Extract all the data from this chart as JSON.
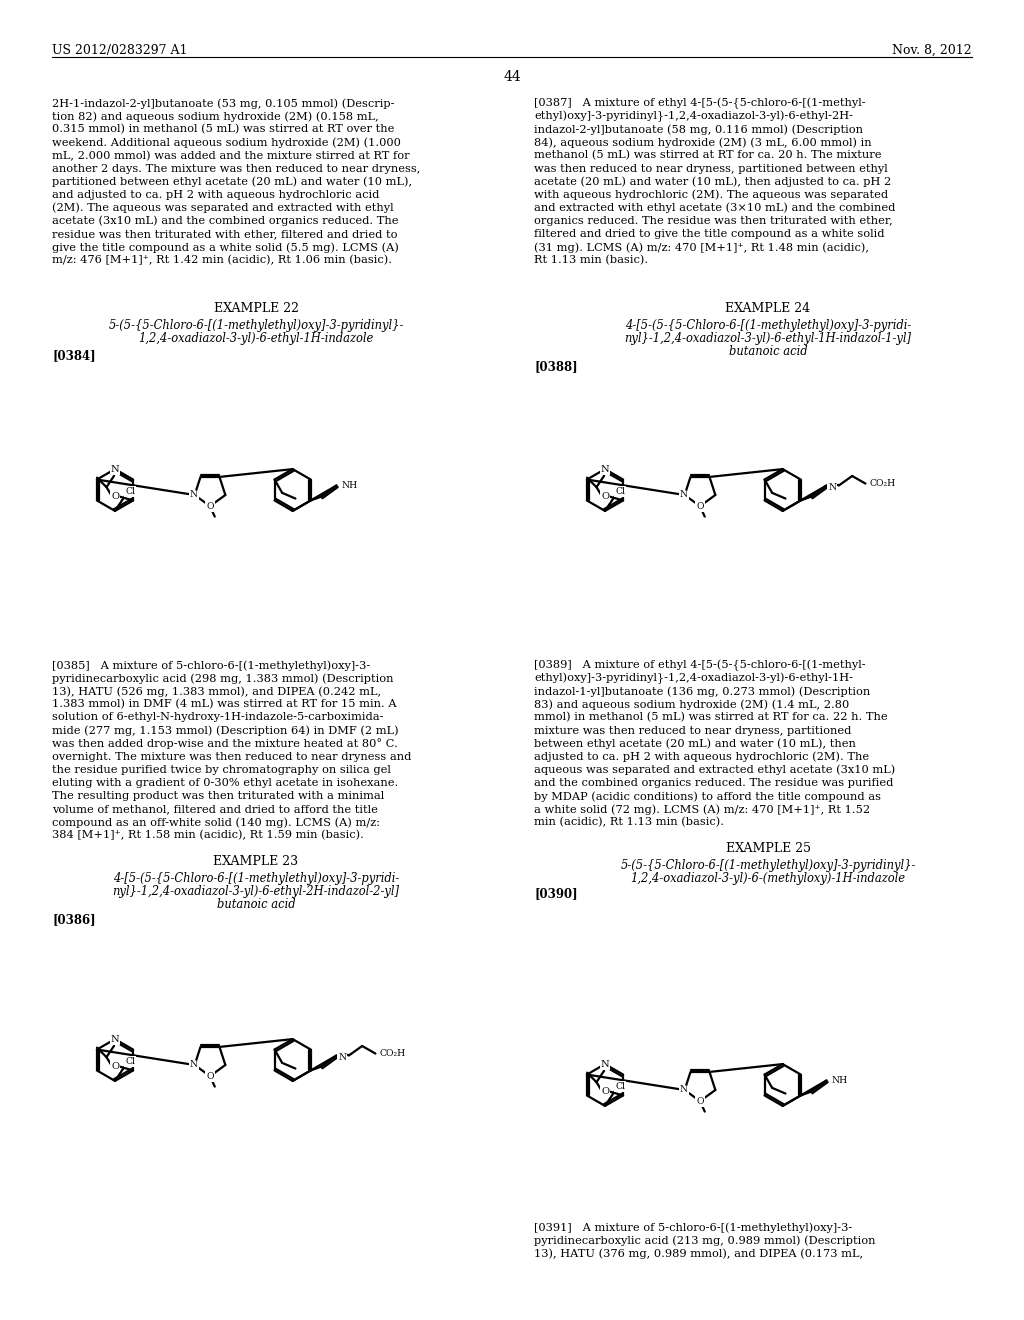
{
  "background_color": "#ffffff",
  "page_header_left": "US 2012/0283297 A1",
  "page_header_right": "Nov. 8, 2012",
  "page_number": "44",
  "left_top_para": [
    "2H-1-indazol-2-yl]butanoate (53 mg, 0.105 mmol) (Descrip-",
    "tion 82) and aqueous sodium hydroxide (2M) (0.158 mL,",
    "0.315 mmol) in methanol (5 mL) was stirred at RT over the",
    "weekend. Additional aqueous sodium hydroxide (2M) (1.000",
    "mL, 2.000 mmol) was added and the mixture stirred at RT for",
    "another 2 days. The mixture was then reduced to near dryness,",
    "partitioned between ethyl acetate (20 mL) and water (10 mL),",
    "and adjusted to ca. pH 2 with aqueous hydrochloric acid",
    "(2M). The aqueous was separated and extracted with ethyl",
    "acetate (3x10 mL) and the combined organics reduced. The",
    "residue was then triturated with ether, filtered and dried to",
    "give the title compound as a white solid (5.5 mg). LCMS (A)",
    "m/z: 476 [M+1]⁺, Rt 1.42 min (acidic), Rt 1.06 min (basic)."
  ],
  "right_top_para": [
    "[0387]   A mixture of ethyl 4-[5-(5-{5-chloro-6-[(1-methyl-",
    "ethyl)oxy]-3-pyridinyl}-1,2,4-oxadiazol-3-yl)-6-ethyl-2H-",
    "indazol-2-yl]butanoate (58 mg, 0.116 mmol) (Description",
    "84), aqueous sodium hydroxide (2M) (3 mL, 6.00 mmol) in",
    "methanol (5 mL) was stirred at RT for ca. 20 h. The mixture",
    "was then reduced to near dryness, partitioned between ethyl",
    "acetate (20 mL) and water (10 mL), then adjusted to ca. pH 2",
    "with aqueous hydrochloric (2M). The aqueous was separated",
    "and extracted with ethyl acetate (3×10 mL) and the combined",
    "organics reduced. The residue was then triturated with ether,",
    "filtered and dried to give the title compound as a white solid",
    "(31 mg). LCMS (A) m/z: 470 [M+1]⁺, Rt 1.48 min (acidic),",
    "Rt 1.13 min (basic)."
  ],
  "example22_title": "EXAMPLE 22",
  "example22_sub1": "5-(5-{5-Chloro-6-[(1-methylethyl)oxy]-3-pyridinyl}-",
  "example22_sub2": "1,2,4-oxadiazol-3-yl)-6-ethyl-1H-indazole",
  "example22_tag": "[0384]",
  "example23_title": "EXAMPLE 23",
  "example23_sub1": "4-[5-(5-{5-Chloro-6-[(1-methylethyl)oxy]-3-pyridi-",
  "example23_sub2": "nyl}-1,2,4-oxadiazol-3-yl)-6-ethyl-2H-indazol-2-yl]",
  "example23_sub3": "butanoic acid",
  "example23_tag": "[0386]",
  "example24_title": "EXAMPLE 24",
  "example24_sub1": "4-[5-(5-{5-Chloro-6-[(1-methylethyl)oxy]-3-pyridi-",
  "example24_sub2": "nyl}-1,2,4-oxadiazol-3-yl)-6-ethyl-1H-indazol-1-yl]",
  "example24_sub3": "butanoic acid",
  "example24_tag": "[0388]",
  "example25_title": "EXAMPLE 25",
  "example25_sub1": "5-(5-{5-Chloro-6-[(1-methylethyl)oxy]-3-pyridinyl}-",
  "example25_sub2": "1,2,4-oxadiazol-3-yl)-6-(methyloxy)-1H-indazole",
  "example25_tag": "[0390]",
  "para0385": [
    "[0385]   A mixture of 5-chloro-6-[(1-methylethyl)oxy]-3-",
    "pyridinecarboxylic acid (298 mg, 1.383 mmol) (Description",
    "13), HATU (526 mg, 1.383 mmol), and DIPEA (0.242 mL,",
    "1.383 mmol) in DMF (4 mL) was stirred at RT for 15 min. A",
    "solution of 6-ethyl-N-hydroxy-1H-indazole-5-carboximida-",
    "mide (277 mg, 1.153 mmol) (Description 64) in DMF (2 mL)",
    "was then added drop-wise and the mixture heated at 80° C.",
    "overnight. The mixture was then reduced to near dryness and",
    "the residue purified twice by chromatography on silica gel",
    "eluting with a gradient of 0-30% ethyl acetate in isohexane.",
    "The resulting product was then triturated with a minimal",
    "volume of methanol, filtered and dried to afford the title",
    "compound as an off-white solid (140 mg). LCMS (A) m/z:",
    "384 [M+1]⁺, Rt 1.58 min (acidic), Rt 1.59 min (basic)."
  ],
  "para0389": [
    "[0389]   A mixture of ethyl 4-[5-(5-{5-chloro-6-[(1-methyl-",
    "ethyl)oxy]-3-pyridinyl}-1,2,4-oxadiazol-3-yl)-6-ethyl-1H-",
    "indazol-1-yl]butanoate (136 mg, 0.273 mmol) (Description",
    "83) and aqueous sodium hydroxide (2M) (1.4 mL, 2.80",
    "mmol) in methanol (5 mL) was stirred at RT for ca. 22 h. The",
    "mixture was then reduced to near dryness, partitioned",
    "between ethyl acetate (20 mL) and water (10 mL), then",
    "adjusted to ca. pH 2 with aqueous hydrochloric (2M). The",
    "aqueous was separated and extracted ethyl acetate (3x10 mL)",
    "and the combined organics reduced. The residue was purified",
    "by MDAP (acidic conditions) to afford the title compound as",
    "a white solid (72 mg). LCMS (A) m/z: 470 [M+1]⁺, Rt 1.52",
    "min (acidic), Rt 1.13 min (basic)."
  ],
  "para0391": [
    "[0391]   A mixture of 5-chloro-6-[(1-methylethyl)oxy]-3-",
    "pyridinecarboxylic acid (213 mg, 0.989 mmol) (Description",
    "13), HATU (376 mg, 0.989 mmol), and DIPEA (0.173 mL,"
  ]
}
